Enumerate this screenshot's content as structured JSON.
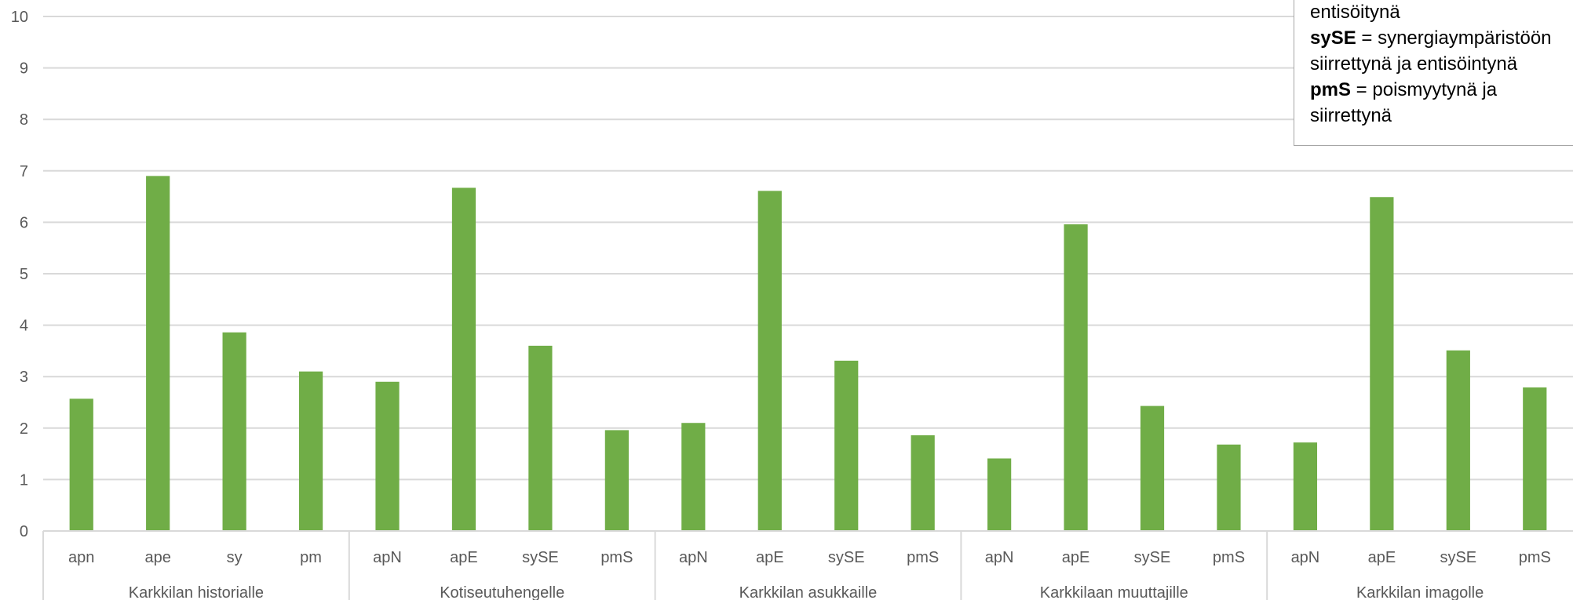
{
  "chart_data": {
    "type": "bar",
    "title": "",
    "xlabel": "",
    "ylabel": "",
    "ylim": [
      0,
      10
    ],
    "yticks": [
      0,
      1,
      2,
      3,
      4,
      5,
      6,
      7,
      8,
      9,
      10
    ],
    "grid": true,
    "bar_color": "#70ad47",
    "groups": [
      {
        "name": "Karkkilan historialle",
        "categories": [
          "apn",
          "ape",
          "sy",
          "pm"
        ],
        "values": [
          2.57,
          6.9,
          3.86,
          3.1
        ]
      },
      {
        "name": "Kotiseutuhengelle",
        "categories": [
          "apN",
          "apE",
          "sySE",
          "pmS"
        ],
        "values": [
          2.9,
          6.67,
          3.6,
          1.96
        ]
      },
      {
        "name": "Karkkilan asukkaille",
        "categories": [
          "apN",
          "apE",
          "sySE",
          "pmS"
        ],
        "values": [
          2.1,
          6.61,
          3.31,
          1.86
        ]
      },
      {
        "name": "Karkkilaan muuttajille",
        "categories": [
          "apN",
          "apE",
          "sySE",
          "pmS"
        ],
        "values": [
          1.41,
          5.96,
          2.43,
          1.68
        ]
      },
      {
        "name": "Karkkilan imagolle",
        "categories": [
          "apN",
          "apE",
          "sySE",
          "pmS"
        ],
        "values": [
          1.72,
          6.49,
          3.51,
          2.79
        ]
      }
    ]
  },
  "legend_note": {
    "lines": [
      {
        "bold": "",
        "text": "entisöitynä"
      },
      {
        "bold": "sySE",
        "text": " = synergiaympäristöön"
      },
      {
        "bold": "",
        "text": "siirrettynä ja entisöintynä"
      },
      {
        "bold": "pmS",
        "text": " = poismyytynä ja"
      },
      {
        "bold": "",
        "text": "siirrettynä"
      }
    ]
  }
}
